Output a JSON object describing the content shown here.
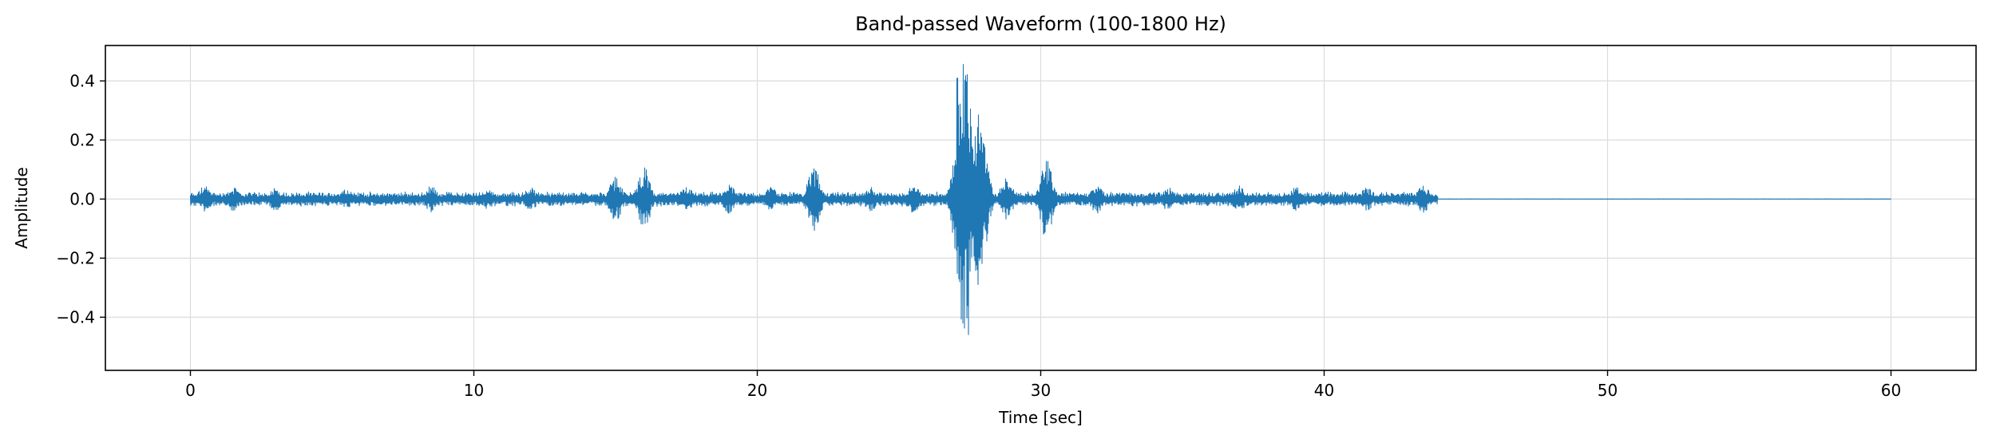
{
  "chart_data": {
    "type": "line",
    "title": "Band-passed Waveform (100-1800 Hz)",
    "xlabel": "Time [sec]",
    "ylabel": "Amplitude",
    "xlim": [
      -3,
      63
    ],
    "ylim": [
      -0.58,
      0.52
    ],
    "x_ticks": [
      0,
      10,
      20,
      30,
      40,
      50,
      60
    ],
    "x_tick_labels": [
      "0",
      "10",
      "20",
      "30",
      "40",
      "50",
      "60"
    ],
    "y_ticks": [
      -0.4,
      -0.2,
      0.0,
      0.2,
      0.4
    ],
    "y_tick_labels": [
      "−0.4",
      "−0.2",
      "0.0",
      "0.2",
      "0.4"
    ],
    "grid": true,
    "line_color": "#1f77b4",
    "series": [
      {
        "duration_sec": 60,
        "signal_end_sec": 44,
        "baseline_amplitude": 0.02,
        "bursts": [
          {
            "time": 0.5,
            "amplitude": 0.045
          },
          {
            "time": 1.5,
            "amplitude": 0.04
          },
          {
            "time": 3.0,
            "amplitude": 0.04
          },
          {
            "time": 5.5,
            "amplitude": 0.035
          },
          {
            "time": 8.5,
            "amplitude": 0.045
          },
          {
            "time": 10.5,
            "amplitude": 0.035
          },
          {
            "time": 12.0,
            "amplitude": 0.04
          },
          {
            "time": 15.0,
            "amplitude": 0.075
          },
          {
            "time": 16.0,
            "amplitude": 0.11
          },
          {
            "time": 17.5,
            "amplitude": 0.045
          },
          {
            "time": 19.0,
            "amplitude": 0.05
          },
          {
            "time": 20.5,
            "amplitude": 0.04
          },
          {
            "time": 22.0,
            "amplitude": 0.11
          },
          {
            "time": 24.0,
            "amplitude": 0.04
          },
          {
            "time": 25.5,
            "amplitude": 0.05
          },
          {
            "time": 27.3,
            "amplitude": 0.47
          },
          {
            "time": 27.8,
            "amplitude": 0.3
          },
          {
            "time": 28.8,
            "amplitude": 0.07
          },
          {
            "time": 30.2,
            "amplitude": 0.14
          },
          {
            "time": 32.0,
            "amplitude": 0.05
          },
          {
            "time": 34.5,
            "amplitude": 0.04
          },
          {
            "time": 37.0,
            "amplitude": 0.045
          },
          {
            "time": 39.0,
            "amplitude": 0.04
          },
          {
            "time": 41.5,
            "amplitude": 0.04
          },
          {
            "time": 43.5,
            "amplitude": 0.045
          }
        ],
        "peak_max": 0.47,
        "peak_min": -0.54
      }
    ]
  }
}
